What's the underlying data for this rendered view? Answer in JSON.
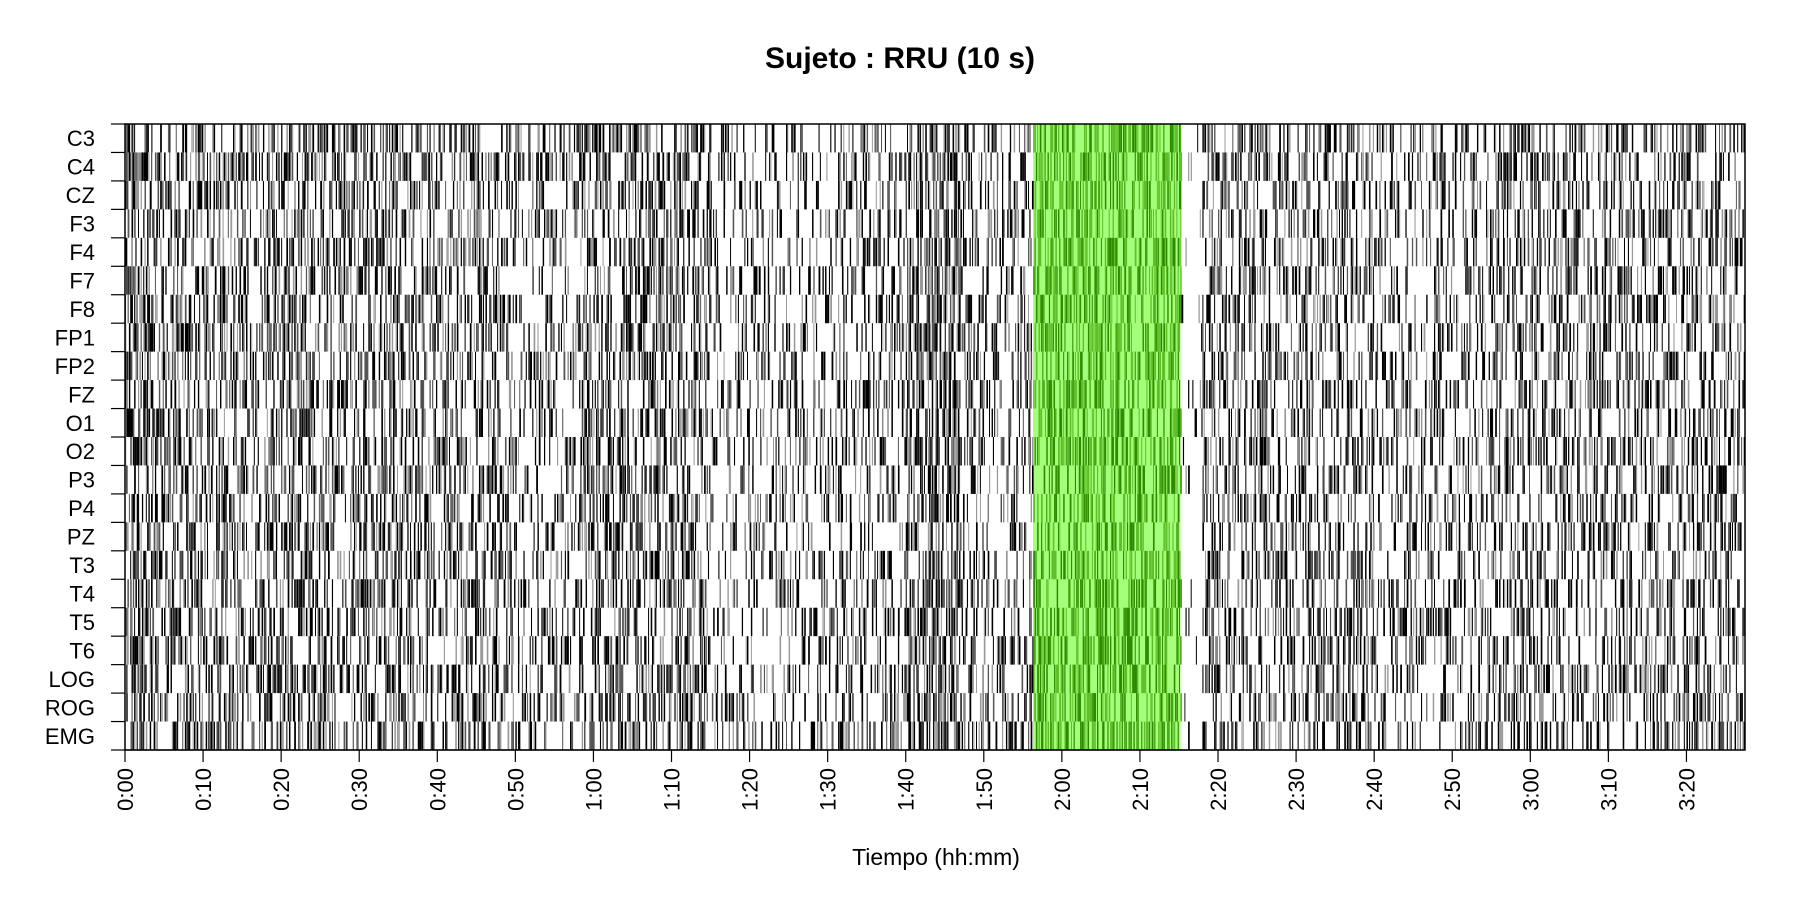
{
  "chart_data": {
    "type": "heatmap",
    "title": "Sujeto : RRU  (10 s)",
    "xlabel": "Tiempo (hh:mm)",
    "ylabel": "",
    "channels": [
      "C3",
      "C4",
      "CZ",
      "F3",
      "F4",
      "F7",
      "F8",
      "FP1",
      "FP2",
      "FZ",
      "O1",
      "O2",
      "P3",
      "P4",
      "PZ",
      "T3",
      "T4",
      "T5",
      "T6",
      "LOG",
      "ROG",
      "EMG"
    ],
    "x_ticks": [
      "0:00",
      "0:10",
      "0:20",
      "0:30",
      "0:40",
      "0:50",
      "1:00",
      "1:10",
      "1:20",
      "1:30",
      "1:40",
      "1:50",
      "2:00",
      "2:10",
      "2:20",
      "2:30",
      "2:40",
      "2:50",
      "3:00",
      "3:10",
      "3:20"
    ],
    "x_tick_minutes": [
      0,
      10,
      20,
      30,
      40,
      50,
      60,
      70,
      80,
      90,
      100,
      110,
      120,
      130,
      140,
      150,
      160,
      170,
      180,
      190,
      200
    ],
    "xlim_minutes": [
      0,
      207.5
    ],
    "epoch_seconds": 10,
    "highlight": {
      "start_minutes": 116.3,
      "end_minutes": 135.2,
      "color": "#a6ff7a",
      "mark_color": "#2e8b00"
    },
    "activity_profile": [
      {
        "start": 0,
        "end": 3,
        "density": 0.55
      },
      {
        "start": 3,
        "end": 20,
        "density": 0.42
      },
      {
        "start": 20,
        "end": 36,
        "density": 0.45
      },
      {
        "start": 36,
        "end": 50,
        "density": 0.38
      },
      {
        "start": 50,
        "end": 58,
        "density": 0.3
      },
      {
        "start": 58,
        "end": 75,
        "density": 0.45
      },
      {
        "start": 75,
        "end": 90,
        "density": 0.25
      },
      {
        "start": 90,
        "end": 100,
        "density": 0.3
      },
      {
        "start": 100,
        "end": 107,
        "density": 0.55
      },
      {
        "start": 107,
        "end": 116.3,
        "density": 0.35
      },
      {
        "start": 116.3,
        "end": 135.2,
        "density": 0.5
      },
      {
        "start": 135.2,
        "end": 138,
        "density": 0.05
      },
      {
        "start": 138,
        "end": 160,
        "density": 0.4
      },
      {
        "start": 160,
        "end": 175,
        "density": 0.3
      },
      {
        "start": 175,
        "end": 207.5,
        "density": 0.38
      }
    ],
    "mark_color": "#000000",
    "grid": false,
    "legend": "none"
  }
}
